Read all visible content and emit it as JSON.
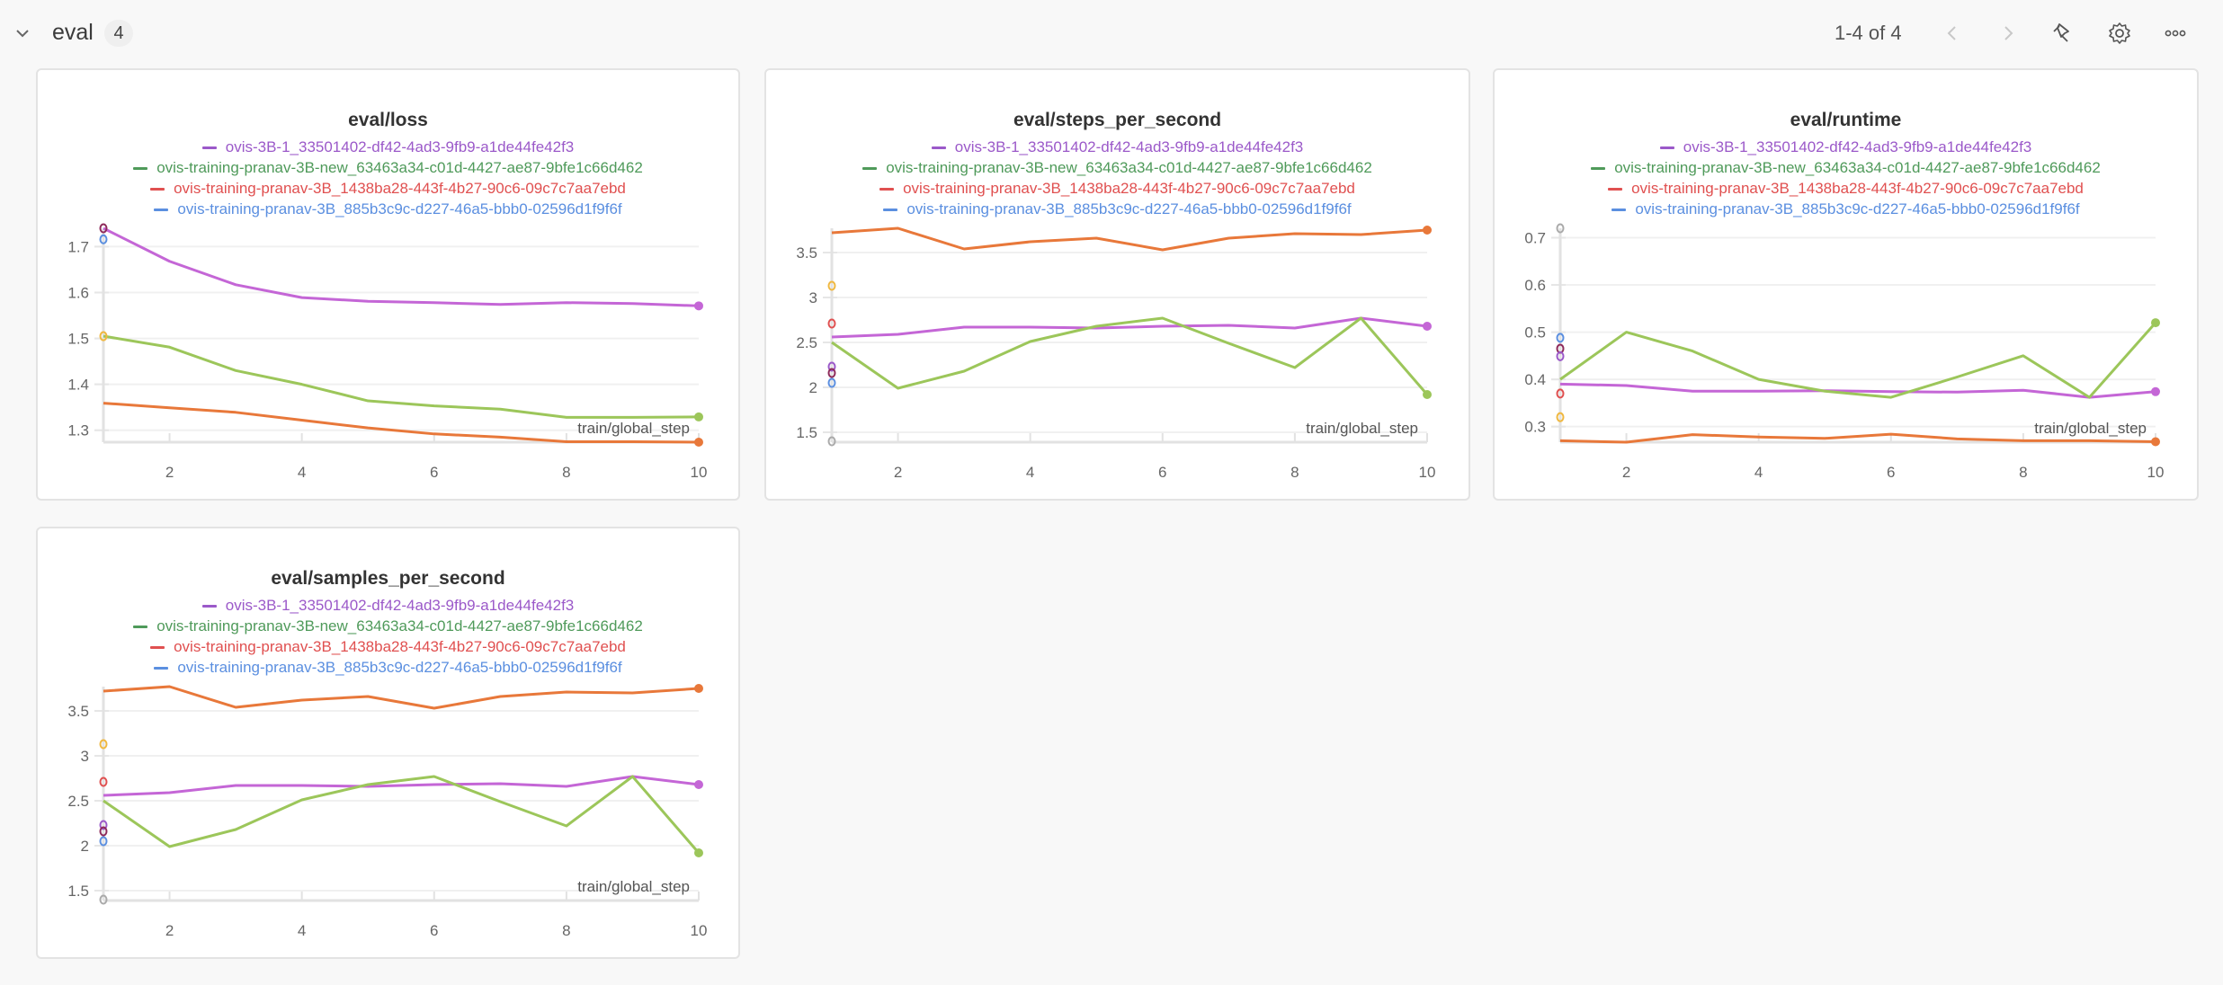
{
  "section": {
    "title": "eval",
    "count": "4",
    "pager_text": "1-4 of 4",
    "icons": [
      "chevron-down-icon",
      "chevron-left-icon",
      "chevron-right-icon",
      "pin-icon",
      "gear-icon",
      "more-icon"
    ]
  },
  "run_names": [
    "ovis-3B-1_33501402-df42-4ad3-9fb9-a1de44fe42f3",
    "ovis-training-pranav-3B-new_63463a34-c01d-4427-ae87-9bfe1c66d462",
    "ovis-training-pranav-3B_1438ba28-443f-4b27-90c6-09c7c7aa7ebd",
    "ovis-training-pranav-3B_885b3c9c-d227-46a5-bbb0-02596d1f9f6f"
  ],
  "legend_colors": [
    "#9b59c9",
    "#4f9a5a",
    "#e05050",
    "#5b8fe0"
  ],
  "line_colors": [
    "#c466d6",
    "#9cc65a",
    "#e8783a",
    "#5b8fe0"
  ],
  "chart_data": [
    {
      "type": "line",
      "title": "eval/loss",
      "xlabel": "train/global_step",
      "ylabel": "",
      "x": [
        1,
        2,
        3,
        4,
        5,
        6,
        7,
        8,
        9,
        10
      ],
      "xticks": [
        2,
        4,
        6,
        8,
        10
      ],
      "yticks": [
        1.3,
        1.4,
        1.5,
        1.6,
        1.7
      ],
      "ytick_labels": [
        "1.3",
        "1.4",
        "1.5",
        "1.6",
        "1.7"
      ],
      "ylim": [
        1.274,
        1.74
      ],
      "grid": true,
      "legend": "top",
      "series": [
        {
          "name": "ovis-3B-1_33501402-df42-4ad3-9fb9-a1de44fe42f3",
          "values": [
            1.74,
            1.668,
            1.617,
            1.589,
            1.581,
            1.578,
            1.574,
            1.578,
            1.576,
            1.571
          ]
        },
        {
          "name": "ovis-training-pranav-3B-new_63463a34-c01d-4427-ae87-9bfe1c66d462",
          "values": [
            1.505,
            1.481,
            1.43,
            1.4,
            1.364,
            1.353,
            1.346,
            1.328,
            1.328,
            1.329
          ]
        },
        {
          "name": "ovis-training-pranav-3B_1438ba28-443f-4b27-90c6-09c7c7aa7ebd",
          "values": [
            1.359,
            1.349,
            1.339,
            1.322,
            1.305,
            1.292,
            1.285,
            1.275,
            1.275,
            1.274
          ]
        },
        {
          "name": "ovis-training-pranav-3B_885b3c9c-d227-46a5-bbb0-02596d1f9f6f",
          "values": []
        }
      ],
      "axis_markers": [
        {
          "value": 1.74,
          "color": "#8e2a5a"
        },
        {
          "value": 1.716,
          "color": "#5b8fe0"
        },
        {
          "value": 1.505,
          "color": "#f0b840"
        }
      ]
    },
    {
      "type": "line",
      "title": "eval/steps_per_second",
      "xlabel": "train/global_step",
      "ylabel": "",
      "x": [
        1,
        2,
        3,
        4,
        5,
        6,
        7,
        8,
        9,
        10
      ],
      "xticks": [
        2,
        4,
        6,
        8,
        10
      ],
      "yticks": [
        1.5,
        2,
        2.5,
        3,
        3.5
      ],
      "ytick_labels": [
        "1.5",
        "2",
        "2.5",
        "3",
        "3.5"
      ],
      "ylim": [
        1.39,
        3.77
      ],
      "grid": true,
      "legend": "top",
      "series": [
        {
          "name": "ovis-3B-1_33501402-df42-4ad3-9fb9-a1de44fe42f3",
          "values": [
            2.56,
            2.59,
            2.67,
            2.67,
            2.66,
            2.68,
            2.69,
            2.66,
            2.77,
            2.68
          ]
        },
        {
          "name": "ovis-training-pranav-3B-new_63463a34-c01d-4427-ae87-9bfe1c66d462",
          "values": [
            2.5,
            1.99,
            2.18,
            2.51,
            2.68,
            2.77,
            2.49,
            2.22,
            2.77,
            1.92
          ]
        },
        {
          "name": "ovis-training-pranav-3B_1438ba28-443f-4b27-90c6-09c7c7aa7ebd",
          "values": [
            3.72,
            3.77,
            3.54,
            3.62,
            3.66,
            3.53,
            3.66,
            3.71,
            3.7,
            3.75
          ]
        },
        {
          "name": "ovis-training-pranav-3B_885b3c9c-d227-46a5-bbb0-02596d1f9f6f",
          "values": []
        }
      ],
      "axis_markers": [
        {
          "value": 3.13,
          "color": "#f0b840"
        },
        {
          "value": 2.71,
          "color": "#e05050"
        },
        {
          "value": 2.23,
          "color": "#9b59c9"
        },
        {
          "value": 2.16,
          "color": "#8e2a5a"
        },
        {
          "value": 2.05,
          "color": "#5b8fe0"
        },
        {
          "value": 1.4,
          "color": "#aaaaaa"
        }
      ]
    },
    {
      "type": "line",
      "title": "eval/runtime",
      "xlabel": "train/global_step",
      "ylabel": "",
      "x": [
        1,
        2,
        3,
        4,
        5,
        6,
        7,
        8,
        9,
        10
      ],
      "xticks": [
        2,
        4,
        6,
        8,
        10
      ],
      "yticks": [
        0.3,
        0.4,
        0.5,
        0.6,
        0.7
      ],
      "ytick_labels": [
        "0.3",
        "0.4",
        "0.5",
        "0.6",
        "0.7"
      ],
      "ylim": [
        0.267,
        0.72
      ],
      "grid": true,
      "legend": "top",
      "series": [
        {
          "name": "ovis-3B-1_33501402-df42-4ad3-9fb9-a1de44fe42f3",
          "values": [
            0.39,
            0.387,
            0.375,
            0.375,
            0.376,
            0.374,
            0.373,
            0.377,
            0.362,
            0.374
          ]
        },
        {
          "name": "ovis-training-pranav-3B-new_63463a34-c01d-4427-ae87-9bfe1c66d462",
          "values": [
            0.4,
            0.5,
            0.46,
            0.4,
            0.375,
            0.362,
            0.405,
            0.45,
            0.362,
            0.52
          ]
        },
        {
          "name": "ovis-training-pranav-3B_1438ba28-443f-4b27-90c6-09c7c7aa7ebd",
          "values": [
            0.27,
            0.267,
            0.283,
            0.278,
            0.275,
            0.284,
            0.274,
            0.27,
            0.27,
            0.268
          ]
        },
        {
          "name": "ovis-training-pranav-3B_885b3c9c-d227-46a5-bbb0-02596d1f9f6f",
          "values": []
        }
      ],
      "axis_markers": [
        {
          "value": 0.72,
          "color": "#aaaaaa"
        },
        {
          "value": 0.488,
          "color": "#5b8fe0"
        },
        {
          "value": 0.465,
          "color": "#8e2a5a"
        },
        {
          "value": 0.449,
          "color": "#9b59c9"
        },
        {
          "value": 0.37,
          "color": "#e05050"
        },
        {
          "value": 0.32,
          "color": "#f0b840"
        }
      ]
    },
    {
      "type": "line",
      "title": "eval/samples_per_second",
      "xlabel": "train/global_step",
      "ylabel": "",
      "x": [
        1,
        2,
        3,
        4,
        5,
        6,
        7,
        8,
        9,
        10
      ],
      "xticks": [
        2,
        4,
        6,
        8,
        10
      ],
      "yticks": [
        1.5,
        2,
        2.5,
        3,
        3.5
      ],
      "ytick_labels": [
        "1.5",
        "2",
        "2.5",
        "3",
        "3.5"
      ],
      "ylim": [
        1.39,
        3.77
      ],
      "grid": true,
      "legend": "top",
      "series": [
        {
          "name": "ovis-3B-1_33501402-df42-4ad3-9fb9-a1de44fe42f3",
          "values": [
            2.56,
            2.59,
            2.67,
            2.67,
            2.66,
            2.68,
            2.69,
            2.66,
            2.77,
            2.68
          ]
        },
        {
          "name": "ovis-training-pranav-3B-new_63463a34-c01d-4427-ae87-9bfe1c66d462",
          "values": [
            2.5,
            1.99,
            2.18,
            2.51,
            2.68,
            2.77,
            2.49,
            2.22,
            2.77,
            1.92
          ]
        },
        {
          "name": "ovis-training-pranav-3B_1438ba28-443f-4b27-90c6-09c7c7aa7ebd",
          "values": [
            3.72,
            3.77,
            3.54,
            3.62,
            3.66,
            3.53,
            3.66,
            3.71,
            3.7,
            3.75
          ]
        },
        {
          "name": "ovis-training-pranav-3B_885b3c9c-d227-46a5-bbb0-02596d1f9f6f",
          "values": []
        }
      ],
      "axis_markers": [
        {
          "value": 3.13,
          "color": "#f0b840"
        },
        {
          "value": 2.71,
          "color": "#e05050"
        },
        {
          "value": 2.23,
          "color": "#9b59c9"
        },
        {
          "value": 2.16,
          "color": "#8e2a5a"
        },
        {
          "value": 2.05,
          "color": "#5b8fe0"
        },
        {
          "value": 1.4,
          "color": "#aaaaaa"
        }
      ]
    }
  ]
}
